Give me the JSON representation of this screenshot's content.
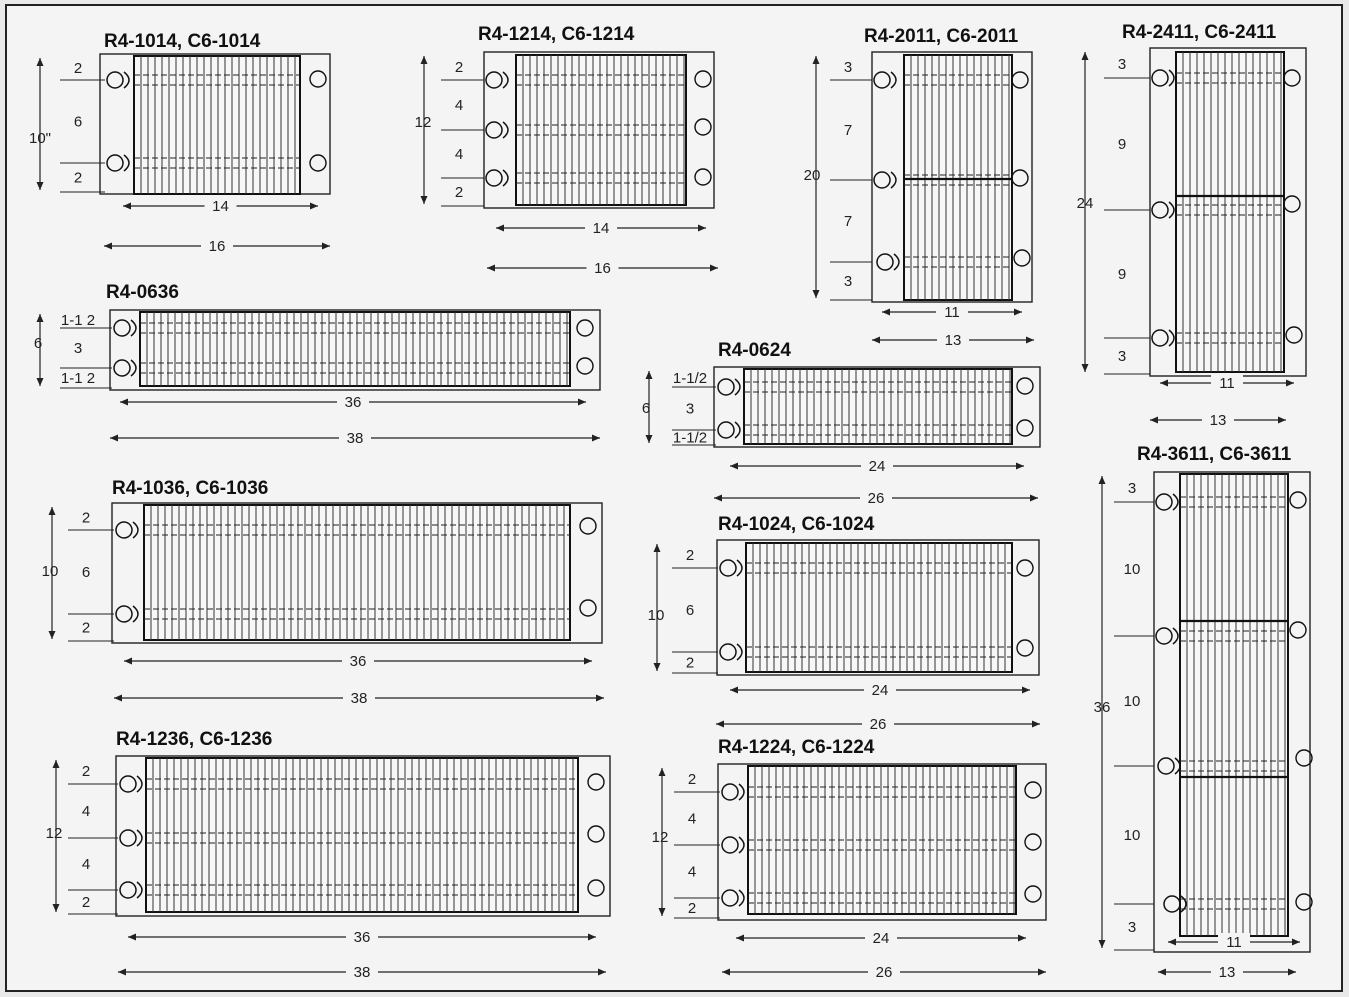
{
  "units": [
    {
      "id": "r4-1014",
      "title": "R4-1014, C6-1014",
      "holes": 2,
      "fins": "v",
      "overall_h": "10\"",
      "segments": [
        "2",
        "6",
        "2"
      ],
      "inner_w": "14",
      "outer_w": "16"
    },
    {
      "id": "r4-1214",
      "title": "R4-1214, C6-1214",
      "holes": 3,
      "fins": "v",
      "overall_h": "12",
      "segments": [
        "2",
        "4",
        "4",
        "2"
      ],
      "inner_w": "14",
      "outer_w": "16"
    },
    {
      "id": "r4-2011",
      "title": "R4-2011, C6-2011",
      "holes": 3,
      "fins": "v",
      "overall_h": "20",
      "segments": [
        "3",
        "7",
        "7",
        "3"
      ],
      "inner_w": "11",
      "outer_w": "13"
    },
    {
      "id": "r4-2411",
      "title": "R4-2411, C6-2411",
      "holes": 3,
      "fins": "v",
      "overall_h": "24",
      "segments": [
        "3",
        "9",
        "9",
        "3"
      ],
      "inner_w": "11",
      "outer_w": "13"
    },
    {
      "id": "r4-0636",
      "title": "R4-0636",
      "holes": 2,
      "fins": "v",
      "overall_h": "6",
      "segments": [
        "1-1 2",
        "3",
        "1-1 2"
      ],
      "inner_w": "36",
      "outer_w": "38"
    },
    {
      "id": "r4-0624",
      "title": "R4-0624",
      "holes": 2,
      "fins": "v",
      "overall_h": "6",
      "segments": [
        "1-1/2",
        "3",
        "1-1/2"
      ],
      "inner_w": "24",
      "outer_w": "26"
    },
    {
      "id": "r4-1036",
      "title": "R4-1036, C6-1036",
      "holes": 2,
      "fins": "v",
      "overall_h": "10",
      "segments": [
        "2",
        "6",
        "2"
      ],
      "inner_w": "36",
      "outer_w": "38"
    },
    {
      "id": "r4-1024",
      "title": "R4-1024, C6-1024",
      "holes": 2,
      "fins": "v",
      "overall_h": "10",
      "segments": [
        "2",
        "6",
        "2"
      ],
      "inner_w": "24",
      "outer_w": "26"
    },
    {
      "id": "r4-3611",
      "title": "R4-3611, C6-3611",
      "holes": 4,
      "fins": "v",
      "overall_h": "36",
      "segments": [
        "3",
        "10",
        "10",
        "10",
        "3"
      ],
      "inner_w": "11",
      "outer_w": "13"
    },
    {
      "id": "r4-1236",
      "title": "R4-1236, C6-1236",
      "holes": 3,
      "fins": "v",
      "overall_h": "12",
      "segments": [
        "2",
        "4",
        "4",
        "2"
      ],
      "inner_w": "36",
      "outer_w": "38"
    },
    {
      "id": "r4-1224",
      "title": "R4-1224, C6-1224",
      "holes": 3,
      "fins": "v",
      "overall_h": "12",
      "segments": [
        "2",
        "4",
        "4",
        "2"
      ],
      "inner_w": "24",
      "outer_w": "26"
    }
  ]
}
